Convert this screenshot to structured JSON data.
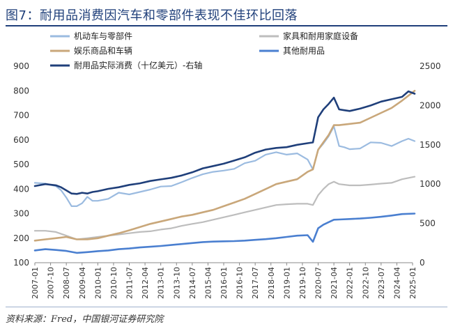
{
  "title": "图7：耐用品消费因汽车和零部件表现不佳环比回落",
  "source": "资料来源：Fred，中国银河证券研究院",
  "chart_data": {
    "type": "line",
    "title": "图7：耐用品消费因汽车和零部件表现不佳环比回落",
    "categories": [
      "2007-01",
      "2007-10",
      "2008-07",
      "2009-04",
      "2010-01",
      "2010-10",
      "2011-07",
      "2012-04",
      "2013-01",
      "2013-10",
      "2014-07",
      "2015-04",
      "2016-01",
      "2016-10",
      "2017-07",
      "2018-04",
      "2019-01",
      "2019-10",
      "2020-07",
      "2021-04",
      "2022-01",
      "2022-10",
      "2023-07",
      "2024-04",
      "2025-01"
    ],
    "left_axis": {
      "ylim": [
        100,
        900
      ],
      "ticks": [
        100,
        200,
        300,
        400,
        500,
        600,
        700,
        800,
        900
      ]
    },
    "right_axis": {
      "ylim": [
        0,
        2500
      ],
      "ticks": [
        0,
        500,
        1000,
        1500,
        2000,
        2500
      ]
    },
    "legend_position": "top",
    "grid": false,
    "series": [
      {
        "name": "机动车与零部件",
        "axis": "left",
        "color": "#9bbbe0",
        "x": [
          2007.0,
          2007.5,
          2008.0,
          2008.25,
          2008.5,
          2008.75,
          2009.0,
          2009.25,
          2009.5,
          2009.75,
          2010.0,
          2010.5,
          2011.0,
          2011.5,
          2012.0,
          2012.5,
          2013.0,
          2013.5,
          2014.0,
          2014.5,
          2015.0,
          2015.5,
          2016.0,
          2016.5,
          2017.0,
          2017.5,
          2018.0,
          2018.5,
          2019.0,
          2019.5,
          2020.0,
          2020.25,
          2020.5,
          2020.75,
          2021.0,
          2021.25,
          2021.5,
          2021.75,
          2022.0,
          2022.5,
          2023.0,
          2023.5,
          2024.0,
          2024.5,
          2024.8,
          2025.1
        ],
        "values": [
          425,
          422,
          412,
          395,
          365,
          330,
          330,
          342,
          368,
          352,
          352,
          360,
          385,
          378,
          388,
          398,
          410,
          412,
          428,
          445,
          460,
          470,
          475,
          482,
          505,
          515,
          540,
          550,
          540,
          545,
          520,
          480,
          560,
          585,
          615,
          655,
          575,
          570,
          562,
          565,
          590,
          588,
          575,
          595,
          605,
          595
        ]
      },
      {
        "name": "家具和耐用家庭设备",
        "axis": "left",
        "color": "#bdbdbd",
        "x": [
          2007.0,
          2007.5,
          2008.0,
          2008.5,
          2009.0,
          2009.5,
          2010.0,
          2010.5,
          2011.0,
          2011.5,
          2012.0,
          2012.5,
          2013.0,
          2013.5,
          2014.0,
          2014.5,
          2015.0,
          2015.5,
          2016.0,
          2016.5,
          2017.0,
          2017.5,
          2018.0,
          2018.5,
          2019.0,
          2019.5,
          2020.0,
          2020.25,
          2020.5,
          2020.75,
          2021.0,
          2021.25,
          2021.5,
          2022.0,
          2022.5,
          2023.0,
          2023.5,
          2024.0,
          2024.5,
          2025.1
        ],
        "values": [
          230,
          230,
          225,
          210,
          195,
          200,
          205,
          210,
          215,
          220,
          225,
          228,
          235,
          240,
          250,
          258,
          265,
          275,
          285,
          295,
          305,
          315,
          325,
          335,
          338,
          340,
          340,
          335,
          375,
          400,
          420,
          430,
          420,
          415,
          415,
          418,
          422,
          425,
          440,
          450
        ]
      },
      {
        "name": "娱乐商品和车辆",
        "axis": "left",
        "color": "#c9a77a",
        "x": [
          2007.0,
          2007.5,
          2008.0,
          2008.5,
          2009.0,
          2009.5,
          2010.0,
          2010.5,
          2011.0,
          2011.5,
          2012.0,
          2012.5,
          2013.0,
          2013.5,
          2014.0,
          2014.5,
          2015.0,
          2015.5,
          2016.0,
          2016.5,
          2017.0,
          2017.5,
          2018.0,
          2018.5,
          2019.0,
          2019.5,
          2020.0,
          2020.25,
          2020.5,
          2020.75,
          2021.0,
          2021.25,
          2021.5,
          2022.0,
          2022.5,
          2023.0,
          2023.5,
          2024.0,
          2024.5,
          2025.1
        ],
        "values": [
          190,
          195,
          200,
          205,
          195,
          195,
          200,
          210,
          220,
          232,
          245,
          258,
          268,
          278,
          288,
          295,
          305,
          315,
          330,
          345,
          360,
          380,
          400,
          420,
          430,
          440,
          470,
          480,
          560,
          590,
          620,
          660,
          660,
          665,
          670,
          690,
          710,
          730,
          760,
          800
        ]
      },
      {
        "name": "耐用品实际消费（十亿美元）-右轴",
        "axis": "right",
        "color": "#1f3f7a",
        "x": [
          2007.0,
          2007.5,
          2008.0,
          2008.25,
          2008.5,
          2008.75,
          2009.0,
          2009.25,
          2009.5,
          2009.75,
          2010.0,
          2010.5,
          2011.0,
          2011.5,
          2012.0,
          2012.5,
          2013.0,
          2013.5,
          2014.0,
          2014.5,
          2015.0,
          2015.5,
          2016.0,
          2016.5,
          2017.0,
          2017.5,
          2018.0,
          2018.5,
          2019.0,
          2019.5,
          2020.0,
          2020.25,
          2020.5,
          2020.75,
          2021.0,
          2021.25,
          2021.5,
          2021.75,
          2022.0,
          2022.5,
          2023.0,
          2023.5,
          2024.0,
          2024.5,
          2024.8,
          2025.1
        ],
        "values": [
          975,
          1000,
          985,
          960,
          920,
          880,
          875,
          890,
          880,
          900,
          910,
          940,
          960,
          990,
          1010,
          1040,
          1060,
          1080,
          1110,
          1150,
          1200,
          1230,
          1260,
          1300,
          1340,
          1400,
          1440,
          1460,
          1470,
          1500,
          1520,
          1530,
          1850,
          1950,
          2020,
          2100,
          1950,
          1940,
          1930,
          1960,
          2000,
          2050,
          2080,
          2110,
          2180,
          2150
        ]
      },
      {
        "name": "其他耐用品",
        "axis": "left",
        "color": "#4a7fd0",
        "x": [
          2007.0,
          2007.5,
          2008.0,
          2008.5,
          2009.0,
          2009.5,
          2010.0,
          2010.5,
          2011.0,
          2011.5,
          2012.0,
          2012.5,
          2013.0,
          2013.5,
          2014.0,
          2014.5,
          2015.0,
          2015.5,
          2016.0,
          2016.5,
          2017.0,
          2017.5,
          2018.0,
          2018.5,
          2019.0,
          2019.5,
          2020.0,
          2020.25,
          2020.5,
          2020.75,
          2021.0,
          2021.25,
          2021.5,
          2022.0,
          2022.5,
          2023.0,
          2023.5,
          2024.0,
          2024.5,
          2025.1
        ],
        "values": [
          150,
          155,
          152,
          148,
          140,
          143,
          147,
          150,
          155,
          158,
          162,
          165,
          168,
          172,
          176,
          180,
          184,
          186,
          187,
          188,
          190,
          193,
          196,
          200,
          205,
          210,
          212,
          185,
          240,
          255,
          265,
          275,
          276,
          278,
          280,
          283,
          287,
          292,
          298,
          300
        ]
      }
    ]
  }
}
